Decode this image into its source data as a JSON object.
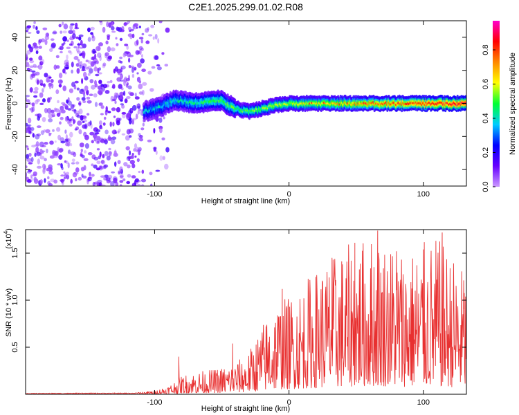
{
  "chart_data": [
    {
      "type": "heatmap",
      "title": "C2E1.2025.299.01.02.R08",
      "xlabel": "Height of straight line (km)",
      "ylabel": "Frequency (Hz)",
      "xlim": [
        -196,
        132
      ],
      "ylim": [
        -50,
        50
      ],
      "x_ticks": [
        {
          "v": -100,
          "label": "-100"
        },
        {
          "v": 0,
          "label": "0"
        },
        {
          "v": 100,
          "label": "100"
        }
      ],
      "y_ticks": [
        {
          "v": -40,
          "label": "-40"
        },
        {
          "v": -20,
          "label": "-20"
        },
        {
          "v": 0,
          "label": "0"
        },
        {
          "v": 20,
          "label": "20"
        },
        {
          "v": 40,
          "label": "40"
        }
      ],
      "noise_region_x": [
        -196,
        -90
      ],
      "signal_start_x": -108,
      "ridge": [
        {
          "x": -108,
          "f": -5
        },
        {
          "x": -95,
          "f": -2
        },
        {
          "x": -85,
          "f": 2
        },
        {
          "x": -70,
          "f": 0
        },
        {
          "x": -60,
          "f": 1
        },
        {
          "x": -50,
          "f": 2
        },
        {
          "x": -45,
          "f": -1
        },
        {
          "x": -35,
          "f": -4
        },
        {
          "x": -30,
          "f": -5
        },
        {
          "x": -20,
          "f": -3
        },
        {
          "x": -10,
          "f": -1
        },
        {
          "x": 0,
          "f": 0
        },
        {
          "x": 20,
          "f": 0
        },
        {
          "x": 60,
          "f": 0
        },
        {
          "x": 132,
          "f": 0
        }
      ],
      "colorbar": {
        "label": "Normalized spectral amplitude",
        "range": [
          0,
          0.97
        ],
        "ticks": [
          {
            "v": 0,
            "label": "0.0"
          },
          {
            "v": 0.2,
            "label": "0.2"
          },
          {
            "v": 0.4,
            "label": "0.4"
          },
          {
            "v": 0.6,
            "label": "0.6"
          },
          {
            "v": 0.8,
            "label": "0.8"
          }
        ],
        "colors": [
          "#cc99ff",
          "#6600ff",
          "#0000ff",
          "#00ccff",
          "#00ff33",
          "#ffff00",
          "#ff8800",
          "#ff0000",
          "#ff00cc"
        ]
      }
    },
    {
      "type": "line",
      "xlabel": "Height of straight line (km)",
      "ylabel": "SNR (10 * v/v)",
      "multiplier": "(x10",
      "multiplier_exp": "4",
      "multiplier_close": ")",
      "xlim": [
        -196,
        132
      ],
      "ylim": [
        0,
        1.75
      ],
      "x_ticks": [
        {
          "v": -100,
          "label": "-100"
        },
        {
          "v": 0,
          "label": "0"
        },
        {
          "v": 100,
          "label": "100"
        }
      ],
      "y_ticks": [
        {
          "v": 0.5,
          "label": "0.5"
        },
        {
          "v": 1.0,
          "label": "1.0"
        },
        {
          "v": 1.5,
          "label": "1.5"
        }
      ],
      "line_color": "#e83030",
      "envelope": [
        {
          "x": -196,
          "v": 0.012
        },
        {
          "x": -115,
          "v": 0.015
        },
        {
          "x": -100,
          "v": 0.04
        },
        {
          "x": -90,
          "v": 0.09
        },
        {
          "x": -80,
          "v": 0.2
        },
        {
          "x": -70,
          "v": 0.24
        },
        {
          "x": -55,
          "v": 0.27
        },
        {
          "x": -40,
          "v": 0.34
        },
        {
          "x": -30,
          "v": 0.45
        },
        {
          "x": -20,
          "v": 0.75
        },
        {
          "x": -10,
          "v": 1.0
        },
        {
          "x": 0,
          "v": 1.05
        },
        {
          "x": 10,
          "v": 1.2
        },
        {
          "x": 25,
          "v": 1.4
        },
        {
          "x": 45,
          "v": 1.6
        },
        {
          "x": 65,
          "v": 1.72
        },
        {
          "x": 90,
          "v": 1.55
        },
        {
          "x": 110,
          "v": 1.68
        },
        {
          "x": 132,
          "v": 1.3
        }
      ],
      "peaks": [
        {
          "x": -82,
          "v": 0.4
        },
        {
          "x": -42,
          "v": 0.54
        },
        {
          "x": -5,
          "v": 1.12
        },
        {
          "x": 32,
          "v": 1.45
        },
        {
          "x": 49,
          "v": 1.61
        },
        {
          "x": 66,
          "v": 1.74
        },
        {
          "x": 80,
          "v": 1.52
        },
        {
          "x": 100,
          "v": 1.54
        },
        {
          "x": 114,
          "v": 1.72
        },
        {
          "x": 130,
          "v": 1.21
        }
      ]
    }
  ]
}
